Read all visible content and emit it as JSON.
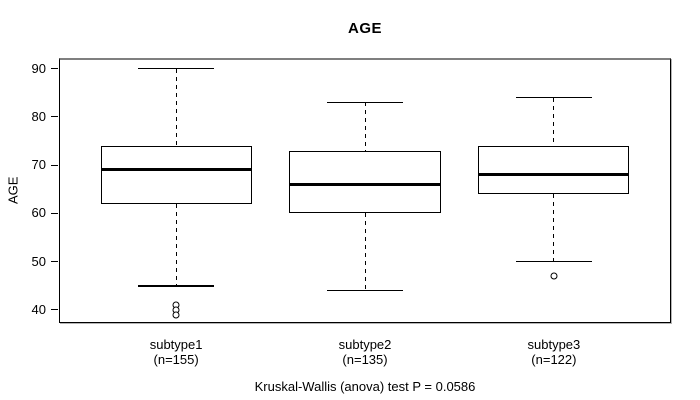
{
  "chart_data": {
    "type": "boxplot",
    "title": "AGE",
    "ylabel": "AGE",
    "xlabel": "",
    "caption": "Kruskal-Wallis (anova) test P = 0.0586",
    "yticks": [
      40,
      50,
      60,
      70,
      80,
      90
    ],
    "ylim": [
      37.3,
      92.2
    ],
    "grid": false,
    "legend": false,
    "colors": {
      "line": "#000000",
      "fill": "#ffffff",
      "background": "#ffffff",
      "frame_top": "#7f7f7f"
    },
    "groups": [
      {
        "label": "subtype1",
        "n_label": "(n=155)",
        "whisker_low": 45,
        "q1": 62,
        "median": 69,
        "q3": 74,
        "whisker_high": 90,
        "outliers": [
          41,
          40,
          39
        ]
      },
      {
        "label": "subtype2",
        "n_label": "(n=135)",
        "whisker_low": 44,
        "q1": 60,
        "median": 66,
        "q3": 73,
        "whisker_high": 83,
        "outliers": []
      },
      {
        "label": "subtype3",
        "n_label": "(n=122)",
        "whisker_low": 50,
        "q1": 64,
        "median": 68,
        "q3": 74,
        "whisker_high": 84,
        "outliers": [
          47
        ]
      }
    ]
  }
}
